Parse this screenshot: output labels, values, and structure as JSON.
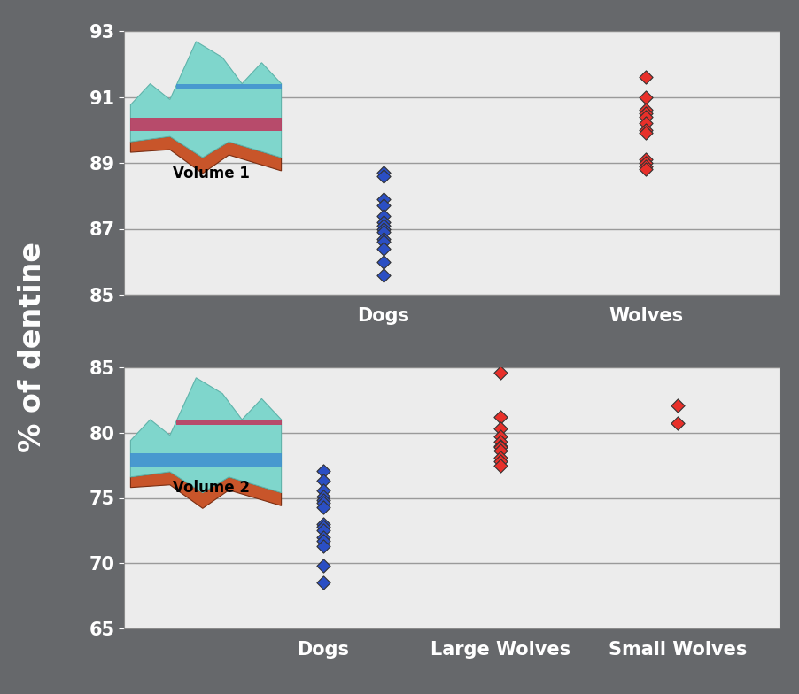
{
  "ylabel": "% of dentine",
  "chart_data": [
    {
      "type": "scatter",
      "annotation": "Volume 1",
      "categories": [
        "Dogs",
        "Wolves"
      ],
      "values": [
        [
          88.7,
          88.6,
          87.9,
          87.7,
          87.4,
          87.2,
          87.1,
          87.0,
          86.9,
          86.7,
          86.6,
          86.4,
          86.0,
          85.6
        ],
        [
          91.6,
          91.0,
          90.6,
          90.5,
          90.4,
          90.2,
          90.0,
          89.9,
          89.1,
          89.0,
          88.9,
          88.8
        ]
      ],
      "colors": [
        "#2b4fc4",
        "#e8302a"
      ],
      "marker": "diamond",
      "ylim": [
        85,
        93
      ],
      "yticks": [
        85,
        87,
        89,
        91,
        93
      ],
      "grid": true
    },
    {
      "type": "scatter",
      "annotation": "Volume 2",
      "categories": [
        "Dogs",
        "Large Wolves",
        "Small Wolves"
      ],
      "values": [
        [
          77.1,
          76.3,
          75.6,
          75.1,
          74.8,
          74.6,
          74.3,
          73.0,
          72.8,
          72.5,
          72.0,
          71.7,
          71.3,
          69.8,
          68.5
        ],
        [
          84.6,
          81.2,
          80.3,
          79.7,
          79.3,
          79.0,
          78.9,
          78.6,
          78.1,
          77.8,
          77.5
        ],
        [
          82.1,
          80.7
        ]
      ],
      "colors": [
        "#2b4fc4",
        "#e8302a",
        "#e8302a"
      ],
      "marker": "diamond",
      "ylim": [
        65,
        85
      ],
      "yticks": [
        65,
        70,
        75,
        80,
        85
      ],
      "grid": true
    }
  ]
}
